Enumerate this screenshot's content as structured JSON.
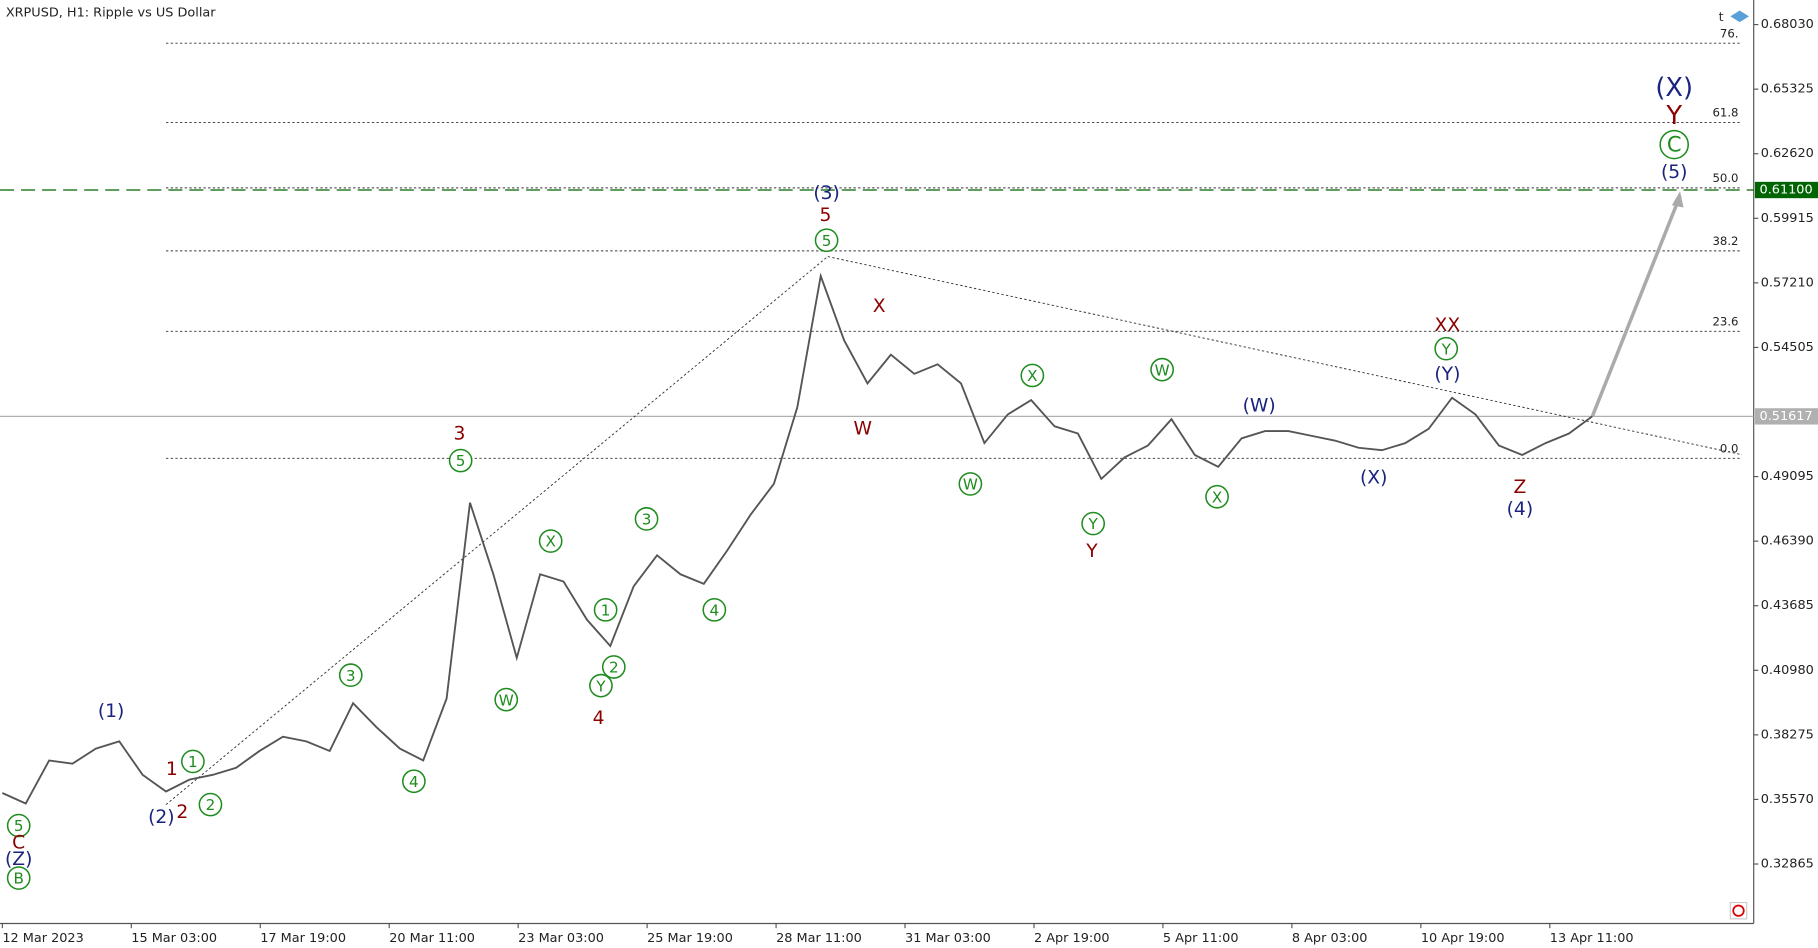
{
  "chart_data": {
    "type": "line",
    "title": "XRPUSD, H1:  Ripple vs US Dollar",
    "ylim": [
      0.3047,
      0.6906
    ],
    "yticks": [
      {
        "value": 0.6803,
        "label": "0.68030"
      },
      0.65325,
      {
        "value": 0.6262,
        "label": "0.62620"
      },
      0.59915,
      {
        "value": 0.5721,
        "label": "0.57210"
      },
      0.54505,
      0.49095,
      {
        "value": 0.4639,
        "label": "0.46390"
      },
      0.43685,
      {
        "value": 0.4098,
        "label": "0.40980"
      },
      0.38275,
      {
        "value": 0.3557,
        "label": "0.35570"
      },
      0.32865
    ],
    "x_labels": [
      "12 Mar 2023",
      "15 Mar 03:00",
      "17 Mar 19:00",
      "20 Mar 11:00",
      "23 Mar 03:00",
      "25 Mar 19:00",
      "28 Mar 11:00",
      "31 Mar 03:00",
      "2 Apr 19:00",
      "5 Apr 11:00",
      "8 Apr 03:00",
      "10 Apr 19:00",
      "13 Apr 11:00"
    ],
    "price": {
      "color": "#555555",
      "values": [
        0.3584,
        0.354,
        0.372,
        0.3707,
        0.377,
        0.38,
        0.366,
        0.359,
        0.364,
        0.366,
        0.369,
        0.376,
        0.382,
        0.38,
        0.376,
        0.396,
        0.386,
        0.377,
        0.372,
        0.398,
        0.48,
        0.45,
        0.415,
        0.45,
        0.447,
        0.431,
        0.42,
        0.445,
        0.458,
        0.45,
        0.446,
        0.46,
        0.475,
        0.488,
        0.52,
        0.575,
        0.548,
        0.53,
        0.542,
        0.534,
        0.538,
        0.53,
        0.505,
        0.517,
        0.523,
        0.512,
        0.509,
        0.49,
        0.499,
        0.504,
        0.515,
        0.5,
        0.495,
        0.507,
        0.51,
        0.51,
        0.508,
        0.506,
        0.503,
        0.502,
        0.505,
        0.511,
        0.524,
        0.517,
        0.504,
        0.5,
        0.505,
        0.509,
        0.5162
      ]
    },
    "current_price": {
      "value": 0.51617,
      "color": "#b0b0b0"
    },
    "target_line": {
      "value": 0.611,
      "label": "0.61100",
      "color": "#006400"
    },
    "fib_levels": [
      {
        "label": "76.",
        "price": 0.6725
      },
      {
        "label": "61.8",
        "price": 0.6393
      },
      {
        "label": "50.0",
        "price": 0.6119
      },
      {
        "label": "38.2",
        "price": 0.5855
      },
      {
        "label": "23.6",
        "price": 0.5518
      },
      {
        "label": "0.0",
        "price": 0.4986
      }
    ],
    "wave_labels": [
      {
        "text": "5",
        "color": "#1e8c1e",
        "circled": true
      },
      {
        "text": "C",
        "color": "#8b0000",
        "circled": false
      },
      {
        "text": "(Z)",
        "color": "#1a237e",
        "circled": false
      },
      {
        "text": "B",
        "color": "#1e8c1e",
        "circled": true
      },
      {
        "text": "(1)",
        "color": "#1a237e",
        "circled": false
      },
      {
        "text": "(2)",
        "color": "#1a237e",
        "circled": false
      },
      {
        "text": "1",
        "color": "#8b0000",
        "circled": false
      },
      {
        "text": "2",
        "color": "#8b0000",
        "circled": false
      },
      {
        "text": "1",
        "color": "#1e8c1e",
        "circled": true
      },
      {
        "text": "2",
        "color": "#1e8c1e",
        "circled": true
      },
      {
        "text": "3",
        "color": "#1e8c1e",
        "circled": true
      },
      {
        "text": "4",
        "color": "#1e8c1e",
        "circled": true
      },
      {
        "text": "3",
        "color": "#8b0000",
        "circled": false
      },
      {
        "text": "5",
        "color": "#1e8c1e",
        "circled": true
      },
      {
        "text": "W",
        "color": "#1e8c1e",
        "circled": true
      },
      {
        "text": "X",
        "color": "#1e8c1e",
        "circled": true
      },
      {
        "text": "1",
        "color": "#1e8c1e",
        "circled": true
      },
      {
        "text": "2",
        "color": "#1e8c1e",
        "circled": true
      },
      {
        "text": "Y",
        "color": "#1e8c1e",
        "circled": true
      },
      {
        "text": "4",
        "color": "#8b0000",
        "circled": false
      },
      {
        "text": "3",
        "color": "#1e8c1e",
        "circled": true
      },
      {
        "text": "4",
        "color": "#1e8c1e",
        "circled": true
      },
      {
        "text": "(3)",
        "color": "#1a237e",
        "circled": false
      },
      {
        "text": "5",
        "color": "#8b0000",
        "circled": false
      },
      {
        "text": "5",
        "color": "#1e8c1e",
        "circled": true
      },
      {
        "text": "X",
        "color": "#8b0000",
        "circled": false
      },
      {
        "text": "W",
        "color": "#8b0000",
        "circled": false
      },
      {
        "text": "W",
        "color": "#1e8c1e",
        "circled": true
      },
      {
        "text": "X",
        "color": "#1e8c1e",
        "circled": true
      },
      {
        "text": "Y",
        "color": "#1e8c1e",
        "circled": true
      },
      {
        "text": "Y",
        "color": "#8b0000",
        "circled": false
      },
      {
        "text": "W",
        "color": "#1e8c1e",
        "circled": true
      },
      {
        "text": "X",
        "color": "#1e8c1e",
        "circled": true
      },
      {
        "text": "(W)",
        "color": "#1a237e",
        "circled": false
      },
      {
        "text": "(X)",
        "color": "#1a237e",
        "circled": false
      },
      {
        "text": "XX",
        "color": "#8b0000",
        "circled": false
      },
      {
        "text": "Y",
        "color": "#1e8c1e",
        "circled": true
      },
      {
        "text": "(Y)",
        "color": "#1a237e",
        "circled": false
      },
      {
        "text": "Z",
        "color": "#8b0000",
        "circled": false
      },
      {
        "text": "(4)",
        "color": "#1a237e",
        "circled": false
      },
      {
        "text": "(X)",
        "color": "#1a237e",
        "circled": false
      },
      {
        "text": "Y",
        "color": "#8b0000",
        "circled": false
      },
      {
        "text": "C",
        "color": "#1e8c1e",
        "circled": true
      },
      {
        "text": "(5)",
        "color": "#1a237e",
        "circled": false
      }
    ]
  }
}
